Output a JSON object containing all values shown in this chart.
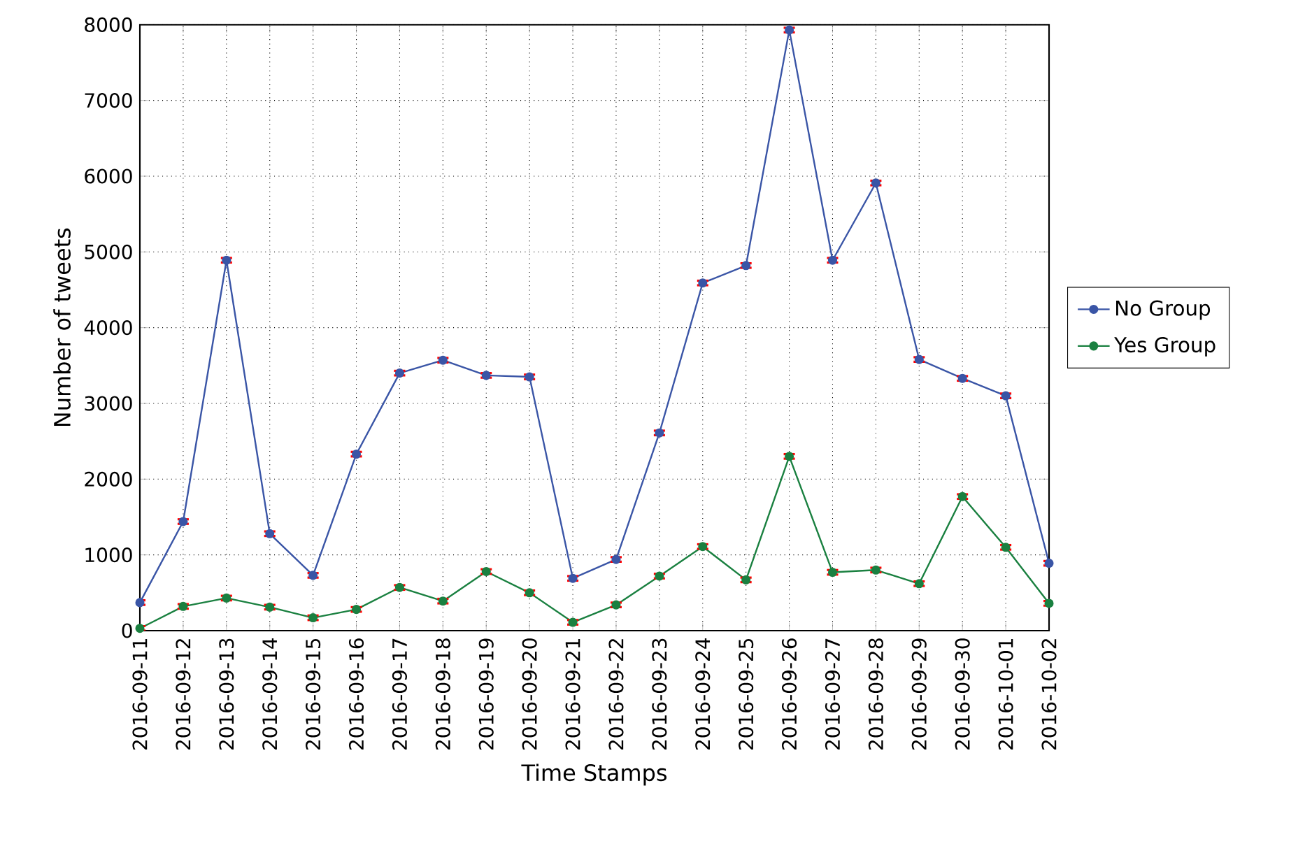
{
  "chart_data": {
    "type": "line",
    "xlabel": "Time Stamps",
    "ylabel": "Number of tweets",
    "categories": [
      "2016-09-11",
      "2016-09-12",
      "2016-09-13",
      "2016-09-14",
      "2016-09-15",
      "2016-09-16",
      "2016-09-17",
      "2016-09-18",
      "2016-09-19",
      "2016-09-20",
      "2016-09-21",
      "2016-09-22",
      "2016-09-23",
      "2016-09-24",
      "2016-09-25",
      "2016-09-26",
      "2016-09-27",
      "2016-09-28",
      "2016-09-29",
      "2016-09-30",
      "2016-10-01",
      "2016-10-02"
    ],
    "series": [
      {
        "name": "No Group",
        "color": "#3a55a6",
        "values": [
          370,
          1440,
          4890,
          1280,
          730,
          2330,
          3400,
          3570,
          3370,
          3350,
          690,
          940,
          2610,
          4590,
          4820,
          7930,
          4890,
          5910,
          3580,
          3330,
          3100,
          890
        ],
        "errors": [
          30,
          30,
          30,
          30,
          30,
          30,
          30,
          30,
          30,
          30,
          30,
          30,
          30,
          30,
          30,
          30,
          30,
          30,
          30,
          30,
          30,
          30
        ]
      },
      {
        "name": "Yes Group",
        "color": "#1a8040",
        "values": [
          30,
          320,
          430,
          310,
          170,
          280,
          570,
          390,
          780,
          500,
          110,
          340,
          720,
          1110,
          670,
          2300,
          770,
          800,
          620,
          1770,
          1100,
          360
        ],
        "errors": [
          30,
          30,
          30,
          30,
          30,
          30,
          30,
          30,
          30,
          30,
          30,
          30,
          30,
          30,
          30,
          30,
          30,
          30,
          30,
          30,
          30,
          30
        ]
      }
    ],
    "ylim": [
      0,
      8000
    ],
    "yticks": [
      0,
      1000,
      2000,
      3000,
      4000,
      5000,
      6000,
      7000,
      8000
    ],
    "grid": true,
    "legend": "right",
    "marker": "circle",
    "line_style": "solid"
  }
}
